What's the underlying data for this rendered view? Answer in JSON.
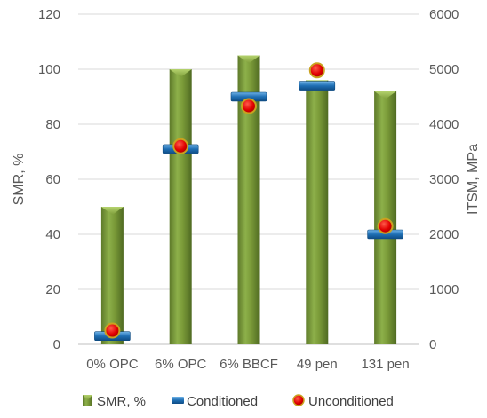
{
  "chart_data": {
    "type": "bar",
    "categories": [
      "0% OPC",
      "6% OPC",
      "6% BBCF",
      "49 pen",
      "131 pen"
    ],
    "series": [
      {
        "name": "SMR, %",
        "axis": "left",
        "kind": "bar",
        "color": "#77933C",
        "values": [
          50,
          100,
          105,
          96,
          92
        ]
      },
      {
        "name": "Conditioned",
        "axis": "right",
        "kind": "dash-marker",
        "color": "#1F6FB4",
        "values": [
          150,
          3550,
          4500,
          4700,
          2000
        ]
      },
      {
        "name": "Unconditioned",
        "axis": "right",
        "kind": "circle-marker",
        "color": "#E00000",
        "values": [
          250,
          3600,
          4330,
          4980,
          2150
        ]
      }
    ],
    "ylabel": "SMR, %",
    "ylim": [
      0,
      120
    ],
    "y_ticks": [
      "0",
      "20",
      "40",
      "60",
      "80",
      "100",
      "120"
    ],
    "y2label": "ITSM, MPa",
    "y2lim": [
      0,
      6000
    ],
    "y2_ticks": [
      "0",
      "1000",
      "2000",
      "3000",
      "4000",
      "5000",
      "6000"
    ],
    "grid": true,
    "legend_position": "bottom"
  }
}
